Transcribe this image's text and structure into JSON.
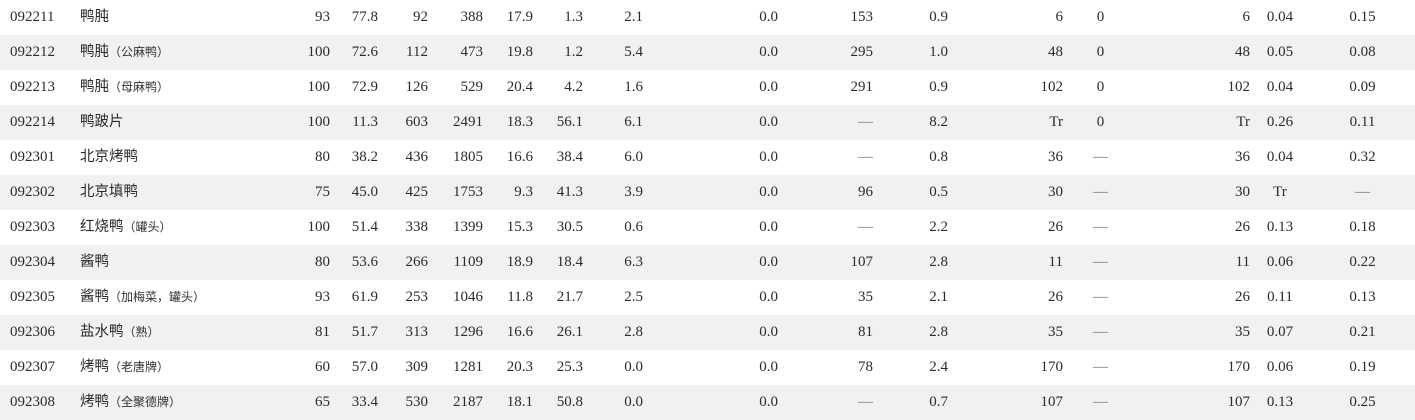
{
  "table": {
    "rows": [
      {
        "code": "092211",
        "name": "鸭肫",
        "note": "",
        "edible": "93",
        "water": "77.8",
        "kcal": "92",
        "kj": "388",
        "protein": "17.9",
        "fat": "1.3",
        "carb": "2.1",
        "fiber": "0.0",
        "cholesterol": "153",
        "ash": "0.9",
        "vit_a_total": "6",
        "carotene": "0",
        "retinol": "6",
        "thiamin": "0.04",
        "riboflavin": "0.15"
      },
      {
        "code": "092212",
        "name": "鸭肫",
        "note": "（公麻鸭）",
        "edible": "100",
        "water": "72.6",
        "kcal": "112",
        "kj": "473",
        "protein": "19.8",
        "fat": "1.2",
        "carb": "5.4",
        "fiber": "0.0",
        "cholesterol": "295",
        "ash": "1.0",
        "vit_a_total": "48",
        "carotene": "0",
        "retinol": "48",
        "thiamin": "0.05",
        "riboflavin": "0.08"
      },
      {
        "code": "092213",
        "name": "鸭肫",
        "note": "（母麻鸭）",
        "edible": "100",
        "water": "72.9",
        "kcal": "126",
        "kj": "529",
        "protein": "20.4",
        "fat": "4.2",
        "carb": "1.6",
        "fiber": "0.0",
        "cholesterol": "291",
        "ash": "0.9",
        "vit_a_total": "102",
        "carotene": "0",
        "retinol": "102",
        "thiamin": "0.04",
        "riboflavin": "0.09"
      },
      {
        "code": "092214",
        "name": "鸭跛片",
        "note": "",
        "edible": "100",
        "water": "11.3",
        "kcal": "603",
        "kj": "2491",
        "protein": "18.3",
        "fat": "56.1",
        "carb": "6.1",
        "fiber": "0.0",
        "cholesterol": "—",
        "ash": "8.2",
        "vit_a_total": "Tr",
        "carotene": "0",
        "retinol": "Tr",
        "thiamin": "0.26",
        "riboflavin": "0.11"
      },
      {
        "code": "092301",
        "name": "北京烤鸭",
        "note": "",
        "edible": "80",
        "water": "38.2",
        "kcal": "436",
        "kj": "1805",
        "protein": "16.6",
        "fat": "38.4",
        "carb": "6.0",
        "fiber": "0.0",
        "cholesterol": "—",
        "ash": "0.8",
        "vit_a_total": "36",
        "carotene": "—",
        "retinol": "36",
        "thiamin": "0.04",
        "riboflavin": "0.32"
      },
      {
        "code": "092302",
        "name": "北京填鸭",
        "note": "",
        "edible": "75",
        "water": "45.0",
        "kcal": "425",
        "kj": "1753",
        "protein": "9.3",
        "fat": "41.3",
        "carb": "3.9",
        "fiber": "0.0",
        "cholesterol": "96",
        "ash": "0.5",
        "vit_a_total": "30",
        "carotene": "—",
        "retinol": "30",
        "thiamin": "Tr",
        "riboflavin": "—"
      },
      {
        "code": "092303",
        "name": "红烧鸭",
        "note": "（罐头）",
        "edible": "100",
        "water": "51.4",
        "kcal": "338",
        "kj": "1399",
        "protein": "15.3",
        "fat": "30.5",
        "carb": "0.6",
        "fiber": "0.0",
        "cholesterol": "—",
        "ash": "2.2",
        "vit_a_total": "26",
        "carotene": "—",
        "retinol": "26",
        "thiamin": "0.13",
        "riboflavin": "0.18"
      },
      {
        "code": "092304",
        "name": "酱鸭",
        "note": "",
        "edible": "80",
        "water": "53.6",
        "kcal": "266",
        "kj": "1109",
        "protein": "18.9",
        "fat": "18.4",
        "carb": "6.3",
        "fiber": "0.0",
        "cholesterol": "107",
        "ash": "2.8",
        "vit_a_total": "11",
        "carotene": "—",
        "retinol": "11",
        "thiamin": "0.06",
        "riboflavin": "0.22"
      },
      {
        "code": "092305",
        "name": "酱鸭",
        "note": "（加梅菜，罐头）",
        "edible": "93",
        "water": "61.9",
        "kcal": "253",
        "kj": "1046",
        "protein": "11.8",
        "fat": "21.7",
        "carb": "2.5",
        "fiber": "0.0",
        "cholesterol": "35",
        "ash": "2.1",
        "vit_a_total": "26",
        "carotene": "—",
        "retinol": "26",
        "thiamin": "0.11",
        "riboflavin": "0.13"
      },
      {
        "code": "092306",
        "name": "盐水鸭",
        "note": "（熟）",
        "edible": "81",
        "water": "51.7",
        "kcal": "313",
        "kj": "1296",
        "protein": "16.6",
        "fat": "26.1",
        "carb": "2.8",
        "fiber": "0.0",
        "cholesterol": "81",
        "ash": "2.8",
        "vit_a_total": "35",
        "carotene": "—",
        "retinol": "35",
        "thiamin": "0.07",
        "riboflavin": "0.21"
      },
      {
        "code": "092307",
        "name": "烤鸭",
        "note": "（老唐牌）",
        "edible": "60",
        "water": "57.0",
        "kcal": "309",
        "kj": "1281",
        "protein": "20.3",
        "fat": "25.3",
        "carb": "0.0",
        "fiber": "0.0",
        "cholesterol": "78",
        "ash": "2.4",
        "vit_a_total": "170",
        "carotene": "—",
        "retinol": "170",
        "thiamin": "0.06",
        "riboflavin": "0.19"
      },
      {
        "code": "092308",
        "name": "烤鸭",
        "note": "（全聚德牌）",
        "edible": "65",
        "water": "33.4",
        "kcal": "530",
        "kj": "2187",
        "protein": "18.1",
        "fat": "50.8",
        "carb": "0.0",
        "fiber": "0.0",
        "cholesterol": "—",
        "ash": "0.7",
        "vit_a_total": "107",
        "carotene": "—",
        "retinol": "107",
        "thiamin": "0.13",
        "riboflavin": "0.25"
      }
    ]
  }
}
